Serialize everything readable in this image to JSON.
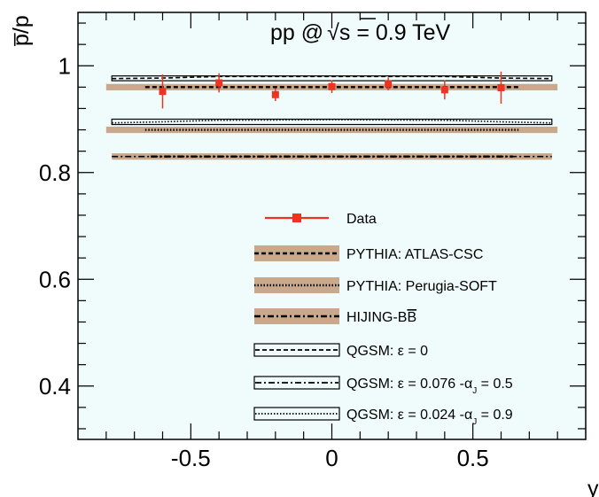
{
  "chart_data": {
    "type": "scatter",
    "title": "",
    "annotation": {
      "prefix": "pp @",
      "sqrt": "√",
      "s": "s",
      "suffix": " = 0.9 TeV"
    },
    "xlabel": "y",
    "ylabel": "p̅/p",
    "xlim": [
      -0.9,
      0.9
    ],
    "ylim": [
      0.3,
      1.1
    ],
    "x_ticks": [
      -0.5,
      0,
      0.5
    ],
    "x_tick_labels": [
      "-0.5",
      "0",
      "0.5"
    ],
    "y_ticks": [
      0.4,
      0.6,
      0.8,
      1.0
    ],
    "y_tick_labels": [
      "0.4",
      "0.6",
      "0.8",
      "1"
    ],
    "grid": false,
    "background": "#f0fcfc",
    "legend_position": "center-right",
    "series": [
      {
        "name": "Data",
        "kind": "points",
        "color": "#ee3322",
        "x": [
          -0.6,
          -0.4,
          -0.2,
          0.0,
          0.2,
          0.4,
          0.6
        ],
        "y": [
          0.952,
          0.968,
          0.946,
          0.961,
          0.966,
          0.955,
          0.959
        ],
        "yerr": [
          0.032,
          0.018,
          0.012,
          0.012,
          0.012,
          0.018,
          0.03
        ]
      },
      {
        "name": "PYTHIA: ATLAS-CSC",
        "kind": "band",
        "fill": "#c9a88c",
        "line": "dashed",
        "xrange": [
          -0.8,
          0.8
        ],
        "y": 0.96,
        "half_width": 0.006
      },
      {
        "name": "PYTHIA: Perugia-SOFT",
        "kind": "band",
        "fill": "#c9a88c",
        "line": "dotted",
        "xrange": [
          -0.8,
          0.8
        ],
        "y": 0.88,
        "half_width": 0.006
      },
      {
        "name": "HIJING-BB̅",
        "legend_prefix": "HIJING-B",
        "legend_bar": "B",
        "kind": "band",
        "fill": "#c9a88c",
        "line": "dashdot",
        "xrange": [
          -0.78,
          0.78
        ],
        "y": 0.83,
        "half_width": 0.006
      },
      {
        "name": "QGSM: ε = 0",
        "kind": "box",
        "line": "dashed",
        "xrange": [
          -0.78,
          0.78
        ],
        "ylow": 0.972,
        "yhigh": 0.981,
        "curve": [
          [
            -0.78,
            0.976
          ],
          [
            -0.6,
            0.977
          ],
          [
            -0.4,
            0.98
          ],
          [
            0,
            0.98
          ],
          [
            0.4,
            0.98
          ],
          [
            0.6,
            0.977
          ],
          [
            0.78,
            0.976
          ]
        ]
      },
      {
        "name": "QGSM: ε = 0.076 -α_J = 0.5",
        "legend_prefix": "QGSM: ε = 0.076 -α",
        "legend_sub": "J",
        "legend_suffix": " = 0.5",
        "kind": "line",
        "line": "dashdot",
        "xrange": [
          -0.78,
          0.78
        ],
        "y": 0.83
      },
      {
        "name": "QGSM: ε = 0.024 -α_J = 0.9",
        "legend_prefix": "QGSM: ε = 0.024 -α",
        "legend_sub": "J",
        "legend_suffix": " = 0.9",
        "kind": "box",
        "line": "dotted",
        "xrange": [
          -0.78,
          0.78
        ],
        "ylow": 0.89,
        "yhigh": 0.9,
        "curve": [
          [
            -0.78,
            0.893
          ],
          [
            -0.6,
            0.895
          ],
          [
            -0.4,
            0.898
          ],
          [
            0,
            0.899
          ],
          [
            0.4,
            0.898
          ],
          [
            0.6,
            0.895
          ],
          [
            0.78,
            0.893
          ]
        ]
      }
    ]
  }
}
